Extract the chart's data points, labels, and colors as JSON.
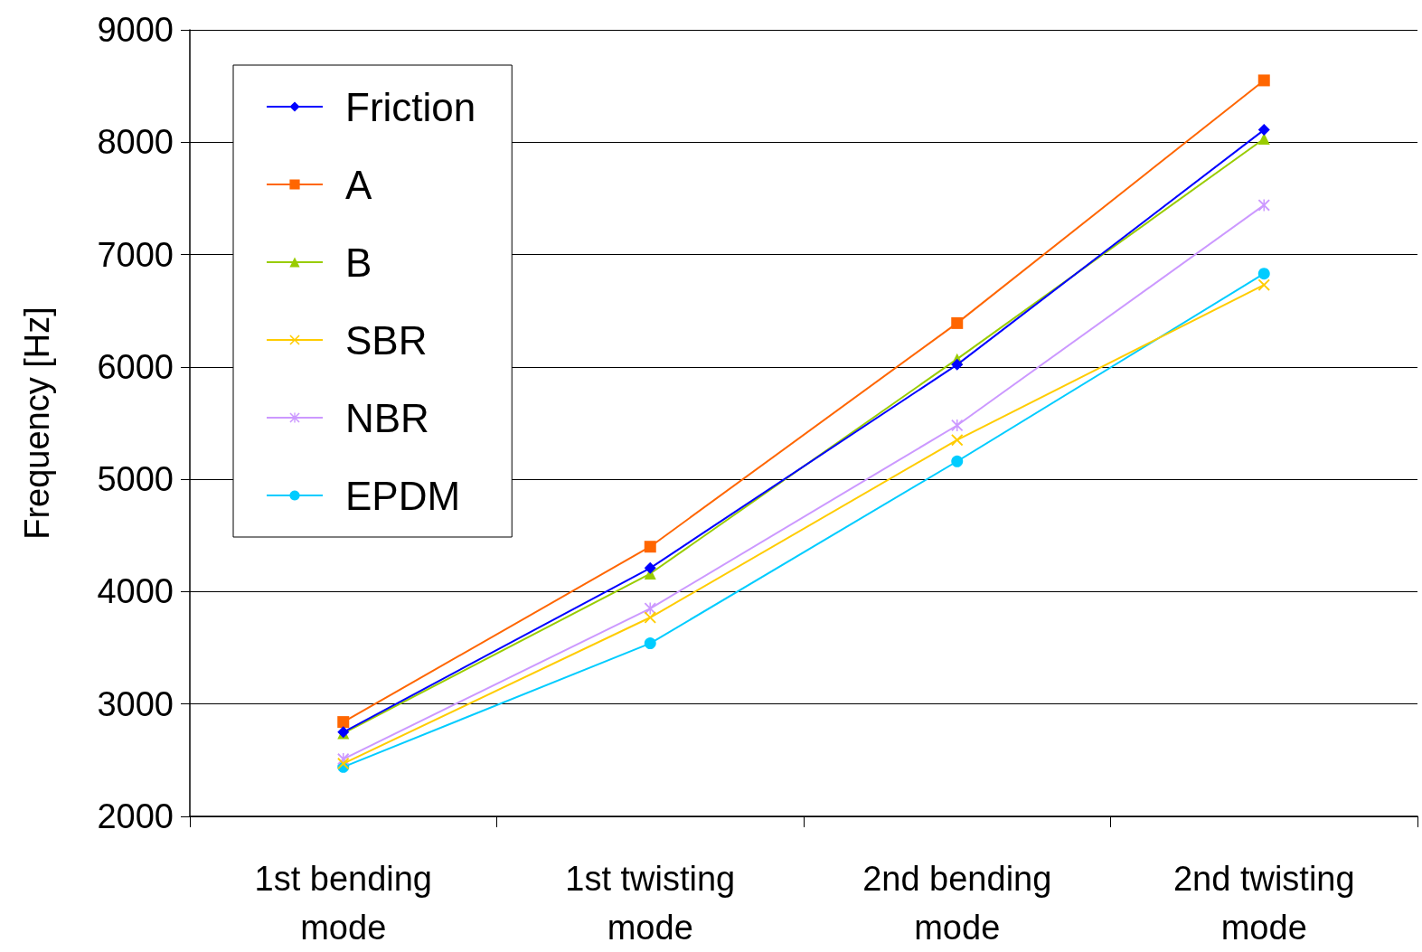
{
  "chart_data": {
    "type": "line",
    "ylabel": "Frequency [Hz]",
    "categories": [
      "1st bending\nmode",
      "1st twisting\nmode",
      "2nd bending\nmode",
      "2nd twisting\nmode"
    ],
    "series": [
      {
        "name": "Friction",
        "color": "#0000ff",
        "marker": "diamond",
        "values": [
          2750,
          4210,
          6020,
          8110
        ]
      },
      {
        "name": "A",
        "color": "#ff6600",
        "marker": "square",
        "values": [
          2840,
          4400,
          6390,
          8550
        ]
      },
      {
        "name": "B",
        "color": "#99cc00",
        "marker": "triangle",
        "values": [
          2740,
          4160,
          6070,
          8030
        ]
      },
      {
        "name": "SBR",
        "color": "#ffcc00",
        "marker": "cross",
        "values": [
          2470,
          3770,
          5350,
          6730
        ]
      },
      {
        "name": "NBR",
        "color": "#cc99ff",
        "marker": "star",
        "values": [
          2510,
          3850,
          5480,
          7440
        ]
      },
      {
        "name": "EPDM",
        "color": "#00ccff",
        "marker": "circle",
        "values": [
          2440,
          3540,
          5160,
          6830
        ]
      }
    ],
    "ylim": [
      2000,
      9000
    ],
    "yticks": [
      2000,
      3000,
      4000,
      5000,
      6000,
      7000,
      8000,
      9000
    ],
    "grid": "y",
    "legend": "top left",
    "line_style": "solid"
  }
}
